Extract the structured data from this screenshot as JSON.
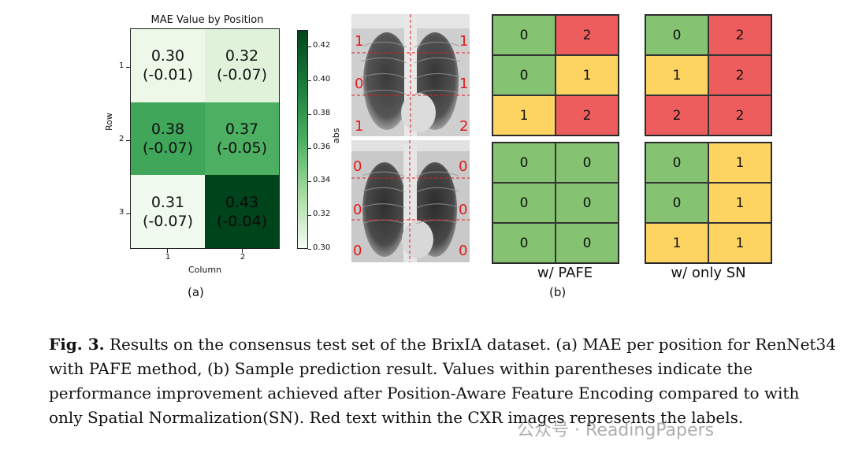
{
  "heatmap": {
    "title": "MAE Value by Position",
    "ylabel": "Row",
    "xlabel": "Column",
    "row_ticks": [
      "1",
      "2",
      "3"
    ],
    "col_ticks": [
      "1",
      "2"
    ],
    "cells": [
      {
        "value": "0.30",
        "delta": "(-0.01)",
        "color": "#edf8e9"
      },
      {
        "value": "0.32",
        "delta": "(-0.07)",
        "color": "#e0f3da"
      },
      {
        "value": "0.38",
        "delta": "(-0.07)",
        "color": "#3fa65a"
      },
      {
        "value": "0.37",
        "delta": "(-0.05)",
        "color": "#4caf61"
      },
      {
        "value": "0.31",
        "delta": "(-0.07)",
        "color": "#f1faee"
      },
      {
        "value": "0.43",
        "delta": "(-0.04)",
        "color": "#00441b"
      }
    ],
    "colorbar_label": "abs",
    "colorbar_ticks": [
      "0.42",
      "0.40",
      "0.38",
      "0.36",
      "0.34",
      "0.32",
      "0.30"
    ],
    "caption": "(a)"
  },
  "chart_data": {
    "type": "heatmap",
    "title": "MAE Value by Position",
    "xlabel": "Column",
    "ylabel": "Row",
    "x": [
      "1",
      "2"
    ],
    "y": [
      "1",
      "2",
      "3"
    ],
    "values": [
      [
        0.3,
        0.32
      ],
      [
        0.38,
        0.37
      ],
      [
        0.31,
        0.43
      ]
    ],
    "improvement": [
      [
        -0.01,
        -0.07
      ],
      [
        -0.07,
        -0.05
      ],
      [
        -0.07,
        -0.04
      ]
    ],
    "colorbar": {
      "label": "abs",
      "range": [
        0.3,
        0.43
      ],
      "colormap": "Greens"
    }
  },
  "cxr_top_labels": {
    "left": [
      "1",
      "0",
      "1"
    ],
    "right": [
      "1",
      "1",
      "2"
    ]
  },
  "cxr_bottom_labels": {
    "left": [
      "0",
      "0",
      "0"
    ],
    "right": [
      "0",
      "0",
      "0"
    ]
  },
  "pafe_top": [
    "0",
    "2",
    "0",
    "1",
    "1",
    "2"
  ],
  "pafe_bottom": [
    "0",
    "0",
    "0",
    "0",
    "0",
    "0"
  ],
  "sn_top": [
    "0",
    "2",
    "1",
    "2",
    "2",
    "2"
  ],
  "sn_bottom": [
    "0",
    "1",
    "0",
    "1",
    "1",
    "1"
  ],
  "colors": {
    "0": "#85c373",
    "1": "#fdd362",
    "2": "#ee5d5d",
    "label_red": "#e41a1c"
  },
  "grid_captions": {
    "pafe": "w/ PAFE",
    "sn": "w/ only SN"
  },
  "panel_b_caption": "(b)",
  "figure_caption": {
    "label": "Fig. 3.",
    "text": "Results on the consensus test set of the BrixIA dataset. (a) MAE per position for RenNet34 with PAFE method, (b) Sample prediction result. Values within parentheses indicate the performance improvement achieved after Position-Aware Feature Encoding compared to with only Spatial Normalization(SN). Red text within the CXR images represents the labels."
  },
  "watermark": "公众号 · ReadingPapers"
}
